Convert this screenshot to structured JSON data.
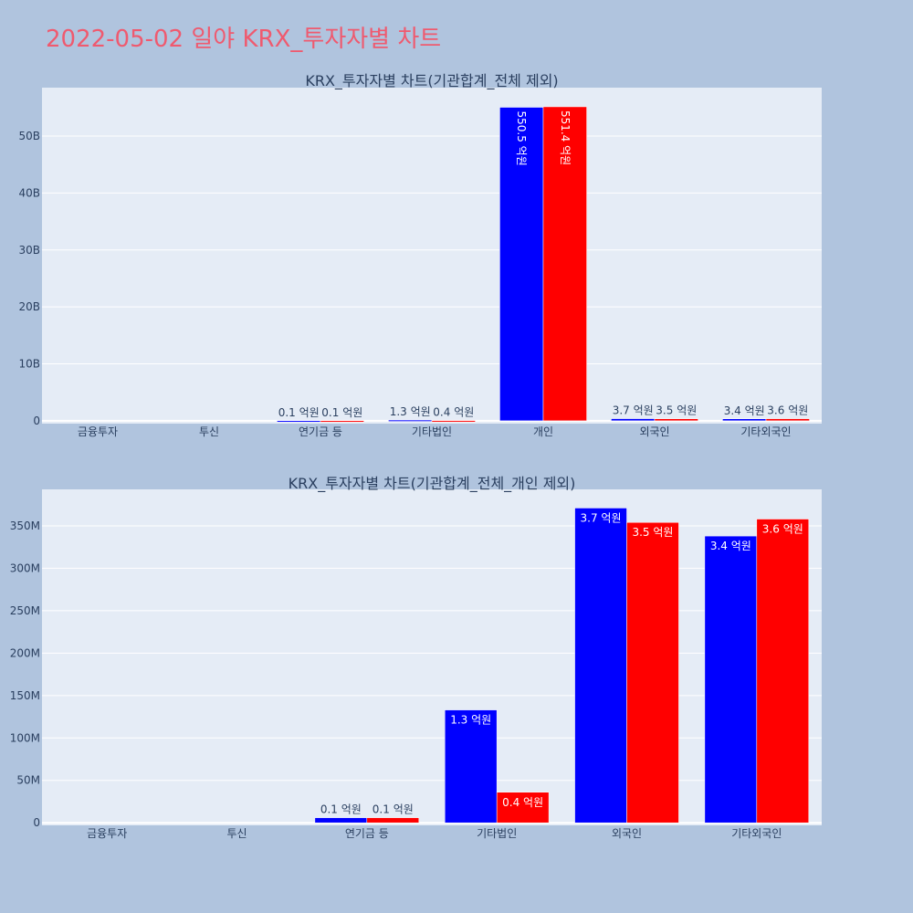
{
  "title": "2022-05-02 일야 KRX_투자자별 차트",
  "colors": {
    "buy": "#0000ff",
    "sell": "#ff0000",
    "title": "#ef5a6f",
    "background": "#b0c4de",
    "plot_background": "#e5ecf6"
  },
  "chart_data": [
    {
      "type": "bar",
      "title": "KRX_투자자별 차트(기관합계_전체 제외)",
      "categories": [
        "금융투자",
        "투신",
        "연기금 등",
        "기타법인",
        "개인",
        "외국인",
        "기타외국인"
      ],
      "series": [
        {
          "values": [
            0,
            0,
            6000000,
            130000000,
            55050000000,
            370000000,
            340000000
          ],
          "labels": [
            "",
            "",
            "0.1 억원",
            "1.3 억원",
            "550.5 억원",
            "3.7 억원",
            "3.4 억원"
          ]
        },
        {
          "values": [
            0,
            0,
            6000000,
            40000000,
            55140000000,
            350000000,
            360000000
          ],
          "labels": [
            "",
            "",
            "0.1 억원",
            "0.4 억원",
            "551.4 억원",
            "3.5 억원",
            "3.6 억원"
          ]
        }
      ],
      "yticks": [
        0,
        10000000000,
        20000000000,
        30000000000,
        40000000000,
        50000000000
      ],
      "ytick_labels": [
        "0",
        "10B",
        "20B",
        "30B",
        "40B",
        "50B"
      ],
      "ylim": [
        -500000000,
        58500000000
      ],
      "grid": true
    },
    {
      "type": "bar",
      "title": "KRX_투자자별 차트(기관합계_전체_개인 제외)",
      "categories": [
        "금융투자",
        "투신",
        "연기금 등",
        "기타법인",
        "외국인",
        "기타외국인"
      ],
      "series": [
        {
          "values": [
            0,
            0,
            6000000,
            133000000,
            371000000,
            338000000
          ],
          "labels": [
            "",
            "",
            "0.1 억원",
            "1.3 억원",
            "3.7 억원",
            "3.4 억원"
          ]
        },
        {
          "values": [
            0,
            0,
            6000000,
            36000000,
            354000000,
            358000000
          ],
          "labels": [
            "",
            "",
            "0.1 억원",
            "0.4 억원",
            "3.5 억원",
            "3.6 억원"
          ]
        }
      ],
      "yticks": [
        0,
        50000000,
        100000000,
        150000000,
        200000000,
        250000000,
        300000000,
        350000000
      ],
      "ytick_labels": [
        "0",
        "50M",
        "100M",
        "150M",
        "200M",
        "250M",
        "300M",
        "350M"
      ],
      "ylim": [
        -3000000,
        393000000
      ],
      "grid": true
    }
  ]
}
